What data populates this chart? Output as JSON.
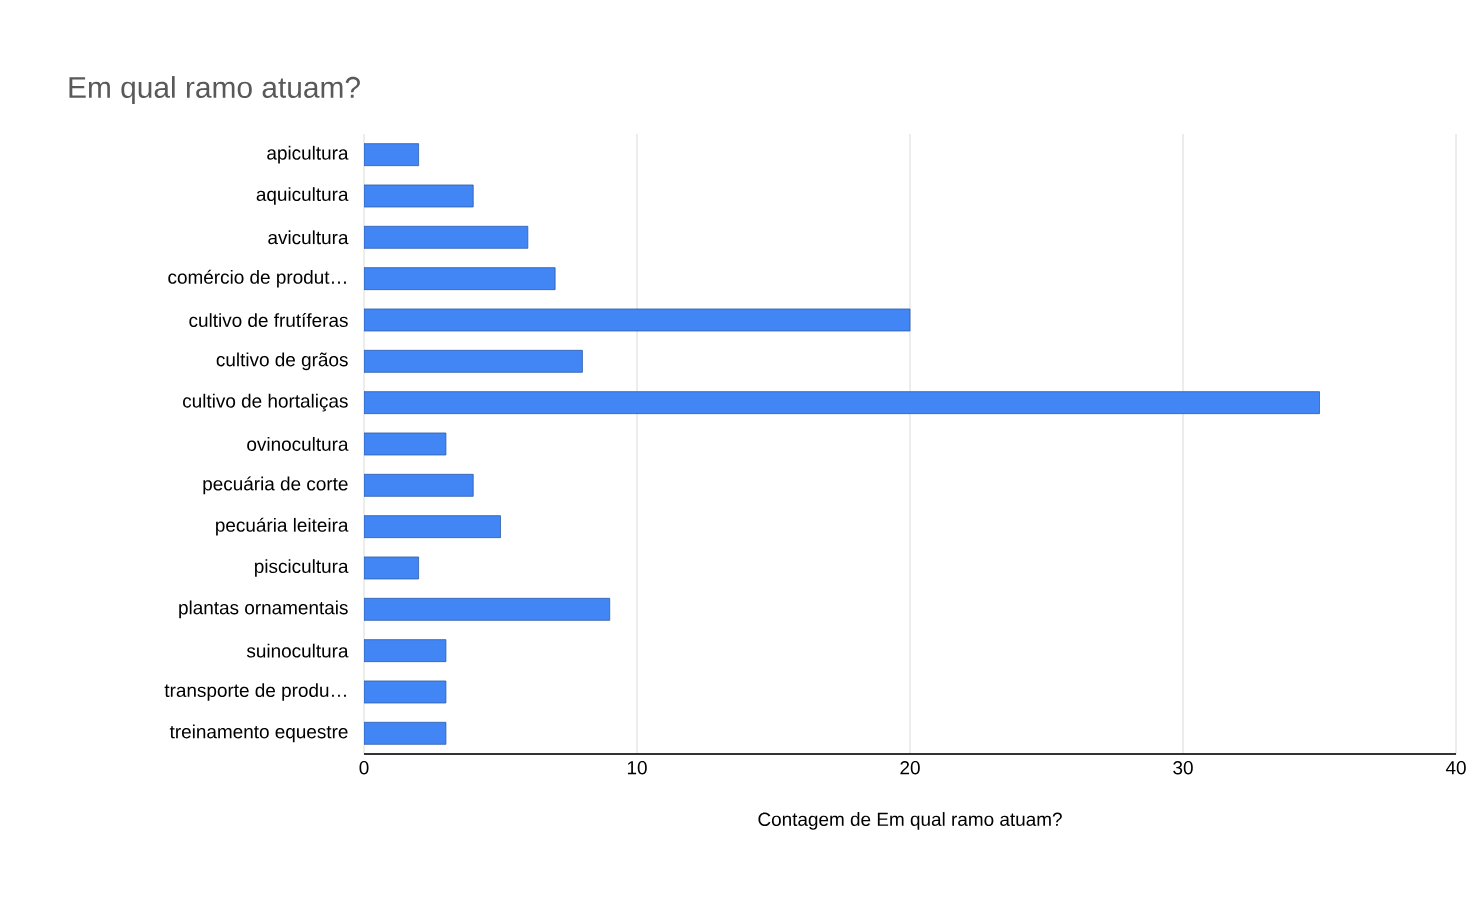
{
  "chart_data": {
    "type": "bar",
    "orientation": "horizontal",
    "title": "Em qual ramo atuam?",
    "xlabel": "Contagem de Em qual ramo atuam?",
    "categories": [
      "apicultura",
      "aquicultura",
      "avicultura",
      "comércio de produt…",
      "cultivo de frutíferas",
      "cultivo de grãos",
      "cultivo de hortaliças",
      "ovinocultura",
      "pecuária de corte",
      "pecuária leiteira",
      "piscicultura",
      "plantas ornamentais",
      "suinocultura",
      "transporte de produ…",
      "treinamento equestre"
    ],
    "values": [
      2,
      4,
      6,
      7,
      20,
      8,
      35,
      3,
      4,
      5,
      2,
      9,
      3,
      3,
      3
    ],
    "color": "#4285f4",
    "xlim": [
      0,
      40
    ],
    "xticks": [
      0,
      10,
      20,
      30,
      40
    ],
    "grid": "x"
  }
}
